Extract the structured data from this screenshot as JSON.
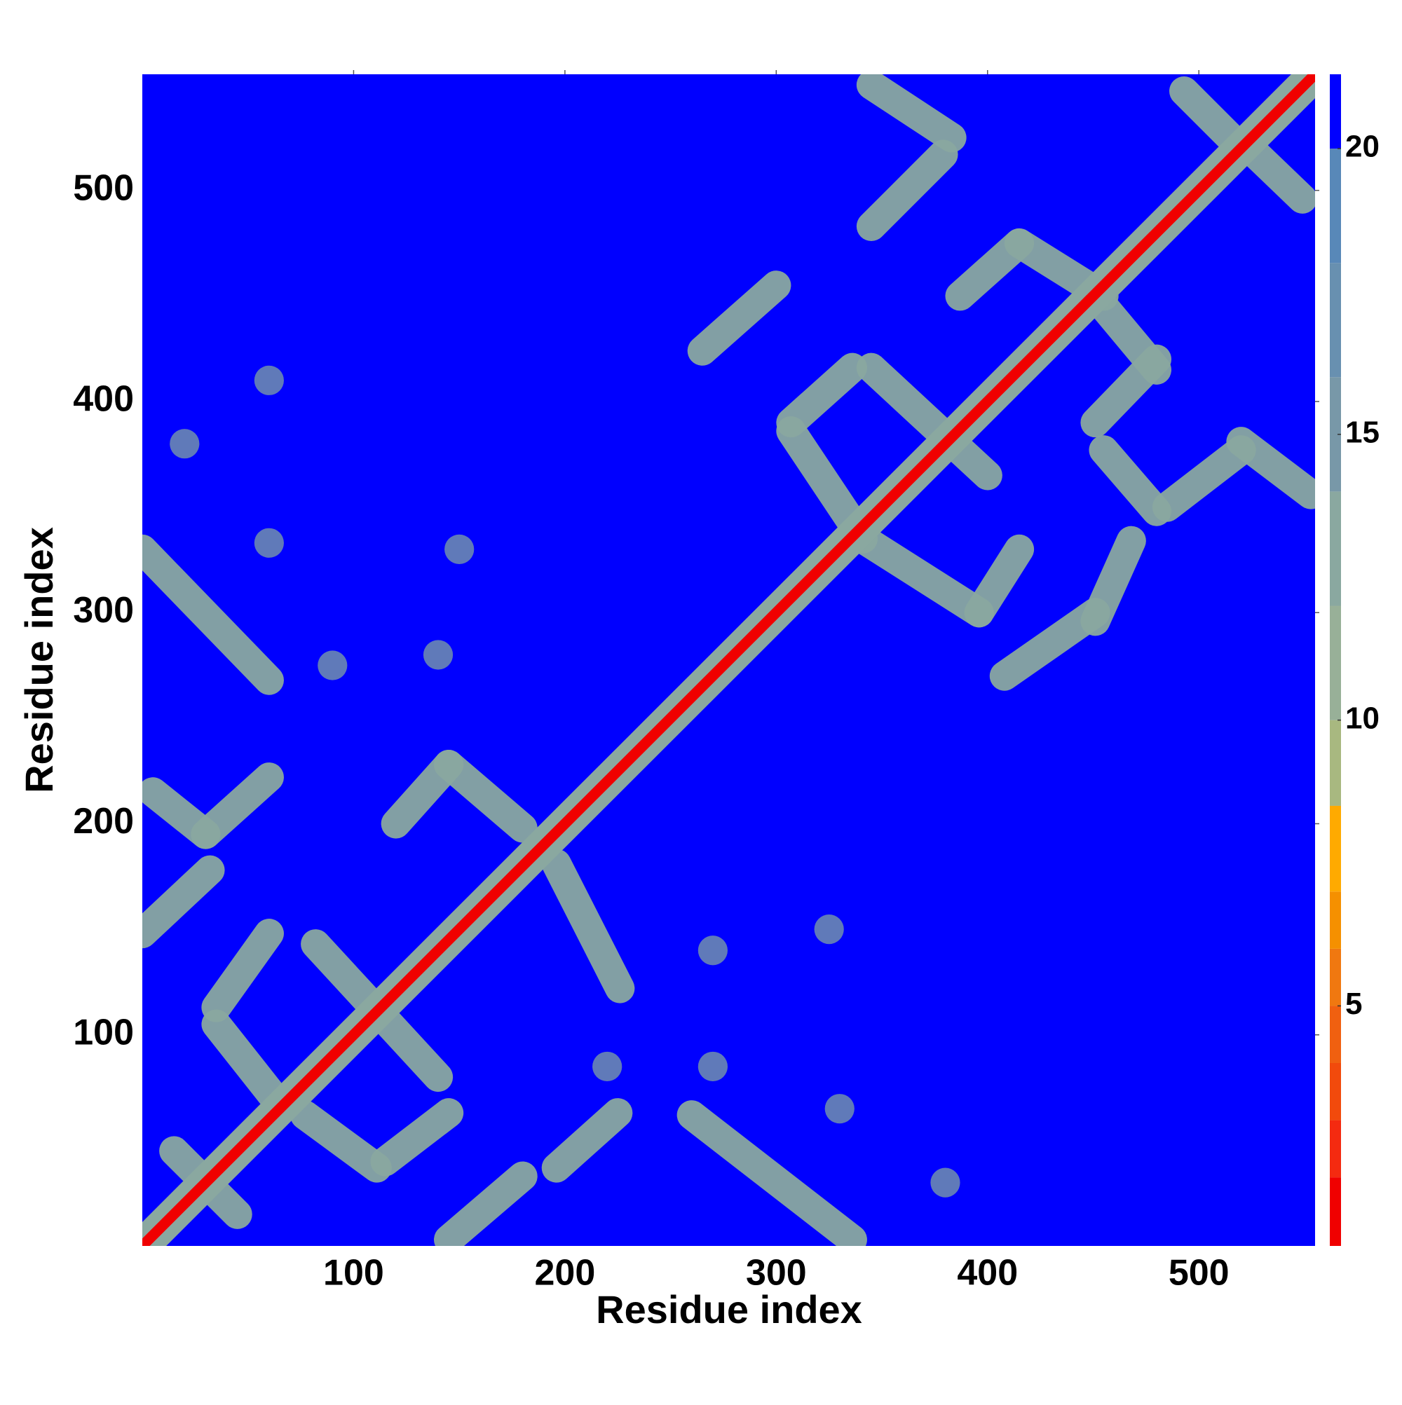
{
  "chart_data": {
    "type": "heatmap",
    "xlabel": "Residue index",
    "ylabel": "Residue index",
    "xlim": [
      0,
      555
    ],
    "ylim": [
      0,
      555
    ],
    "xticks": [
      100,
      200,
      300,
      400,
      500
    ],
    "yticks": [
      100,
      200,
      300,
      400,
      500
    ],
    "background_value": 21,
    "colorbar": {
      "lim": [
        0.8,
        21.3
      ],
      "ticks": [
        5,
        10,
        15,
        20
      ],
      "levels": [
        0.8,
        2,
        3,
        4,
        5,
        6,
        7,
        8.5,
        10,
        12,
        14,
        16,
        18,
        20,
        21.3
      ],
      "colors": [
        "#f00000",
        "#f42a10",
        "#f24a0c",
        "#f06010",
        "#f07810",
        "#f59000",
        "#ffaa00",
        "#a8b880",
        "#98b098",
        "#8aa8a0",
        "#7898a8",
        "#6890b0",
        "#5888b8",
        "#0000ff"
      ]
    },
    "diagonal": {
      "value": 1.5,
      "band_value": 12
    },
    "stripes": [
      {
        "x": [
          0,
          60
        ],
        "y": [
          330,
          268
        ],
        "value": 12
      },
      {
        "x": [
          5,
          30
        ],
        "y": [
          215,
          195
        ],
        "value": 12
      },
      {
        "x": [
          30,
          60
        ],
        "y": [
          195,
          222
        ],
        "value": 12
      },
      {
        "x": [
          120,
          145
        ],
        "y": [
          200,
          228
        ],
        "value": 12
      },
      {
        "x": [
          145,
          180
        ],
        "y": [
          228,
          198
        ],
        "value": 12
      },
      {
        "x": [
          0,
          32
        ],
        "y": [
          148,
          178
        ],
        "value": 12
      },
      {
        "x": [
          35,
          60
        ],
        "y": [
          113,
          148
        ],
        "value": 12
      },
      {
        "x": [
          82,
          140
        ],
        "y": [
          143,
          80
        ],
        "value": 12
      },
      {
        "x": [
          15,
          45
        ],
        "y": [
          45,
          15
        ],
        "value": 12
      },
      {
        "x": [
          35,
          65
        ],
        "y": [
          105,
          67
        ],
        "value": 12
      },
      {
        "x": [
          77,
          111
        ],
        "y": [
          62,
          37
        ],
        "value": 12
      },
      {
        "x": [
          115,
          145
        ],
        "y": [
          40,
          63
        ],
        "value": 12
      },
      {
        "x": [
          145,
          180
        ],
        "y": [
          3,
          33
        ],
        "value": 12
      },
      {
        "x": [
          196,
          225
        ],
        "y": [
          37,
          63
        ],
        "value": 12
      },
      {
        "x": [
          196,
          226
        ],
        "y": [
          181,
          122
        ],
        "value": 12
      },
      {
        "x": [
          260,
          336
        ],
        "y": [
          62,
          3
        ],
        "value": 12
      },
      {
        "x": [
          265,
          300
        ],
        "y": [
          424,
          455
        ],
        "value": 12
      },
      {
        "x": [
          307,
          336
        ],
        "y": [
          390,
          416
        ],
        "value": 12
      },
      {
        "x": [
          307,
          341
        ],
        "y": [
          386,
          335
        ],
        "value": 12
      },
      {
        "x": [
          341,
          396
        ],
        "y": [
          335,
          300
        ],
        "value": 12
      },
      {
        "x": [
          396,
          415
        ],
        "y": [
          300,
          330
        ],
        "value": 12
      },
      {
        "x": [
          345,
          400
        ],
        "y": [
          416,
          365
        ],
        "value": 12
      },
      {
        "x": [
          387,
          415
        ],
        "y": [
          450,
          475
        ],
        "value": 12
      },
      {
        "x": [
          415,
          455
        ],
        "y": [
          475,
          450
        ],
        "value": 12
      },
      {
        "x": [
          455,
          480
        ],
        "y": [
          445,
          415
        ],
        "value": 12
      },
      {
        "x": [
          451,
          480
        ],
        "y": [
          390,
          420
        ],
        "value": 12
      },
      {
        "x": [
          455,
          480
        ],
        "y": [
          377,
          348
        ],
        "value": 12
      },
      {
        "x": [
          485,
          520
        ],
        "y": [
          350,
          377
        ],
        "value": 12
      },
      {
        "x": [
          520,
          553
        ],
        "y": [
          381,
          356
        ],
        "value": 12
      },
      {
        "x": [
          408,
          451
        ],
        "y": [
          270,
          300
        ],
        "value": 12
      },
      {
        "x": [
          451,
          468
        ],
        "y": [
          296,
          334
        ],
        "value": 12
      },
      {
        "x": [
          345,
          383
        ],
        "y": [
          550,
          525
        ],
        "value": 12
      },
      {
        "x": [
          345,
          379
        ],
        "y": [
          483,
          517
        ],
        "value": 12
      },
      {
        "x": [
          493,
          519
        ],
        "y": [
          547,
          521
        ],
        "value": 12
      },
      {
        "x": [
          523,
          549
        ],
        "y": [
          521,
          496
        ],
        "value": 12
      }
    ],
    "blobs": [
      {
        "x": 20,
        "y": 380,
        "value": 14
      },
      {
        "x": 150,
        "y": 330,
        "value": 14
      },
      {
        "x": 60,
        "y": 333,
        "value": 14
      },
      {
        "x": 90,
        "y": 275,
        "value": 14
      },
      {
        "x": 140,
        "y": 280,
        "value": 14
      },
      {
        "x": 325,
        "y": 150,
        "value": 14
      },
      {
        "x": 380,
        "y": 30,
        "value": 14
      },
      {
        "x": 270,
        "y": 85,
        "value": 14
      },
      {
        "x": 220,
        "y": 85,
        "value": 14
      },
      {
        "x": 270,
        "y": 140,
        "value": 14
      },
      {
        "x": 60,
        "y": 410,
        "value": 14
      },
      {
        "x": 330,
        "y": 65,
        "value": 14
      }
    ]
  }
}
